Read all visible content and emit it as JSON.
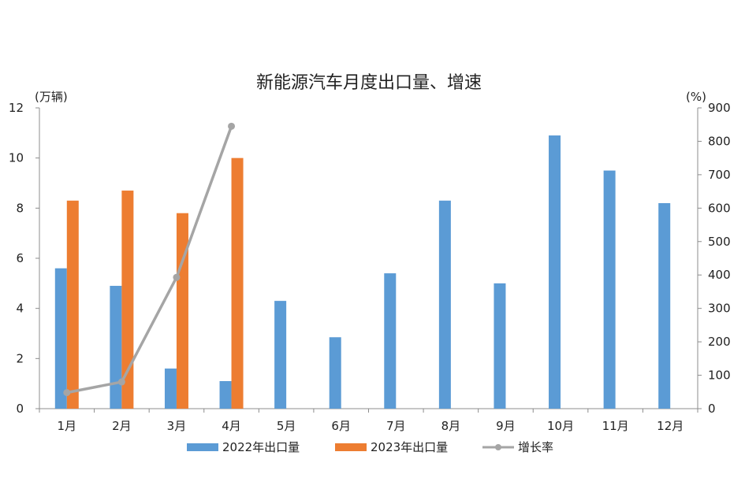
{
  "chart_data": {
    "type": "bar",
    "title": "新能源汽车月度出口量、增速",
    "left_unit": "(万辆)",
    "right_unit": "(%)",
    "categories": [
      "1月",
      "2月",
      "3月",
      "4月",
      "5月",
      "6月",
      "7月",
      "8月",
      "9月",
      "10月",
      "11月",
      "12月"
    ],
    "series": [
      {
        "name": "2022年出口量",
        "kind": "bar",
        "axis": "left",
        "color": "#5B9BD5",
        "values": [
          5.6,
          4.9,
          1.6,
          1.1,
          4.3,
          2.85,
          5.4,
          8.3,
          5.0,
          10.9,
          9.5,
          8.2
        ]
      },
      {
        "name": "2023年出口量",
        "kind": "bar",
        "axis": "left",
        "color": "#ED7D31",
        "values": [
          8.3,
          8.7,
          7.8,
          10.0,
          null,
          null,
          null,
          null,
          null,
          null,
          null,
          null
        ]
      },
      {
        "name": "增长率",
        "kind": "line",
        "axis": "right",
        "color": "#A5A5A5",
        "values": [
          48,
          80,
          393,
          845,
          null,
          null,
          null,
          null,
          null,
          null,
          null,
          null
        ]
      }
    ],
    "ylim_left": [
      0,
      12
    ],
    "yticks_left": [
      "0",
      "2",
      "4",
      "6",
      "8",
      "10",
      "12"
    ],
    "ylim_right": [
      0,
      900
    ],
    "yticks_right": [
      "0",
      "100",
      "200",
      "300",
      "400",
      "500",
      "600",
      "700",
      "800",
      "900"
    ],
    "grid": false,
    "legend_position": "bottom"
  }
}
